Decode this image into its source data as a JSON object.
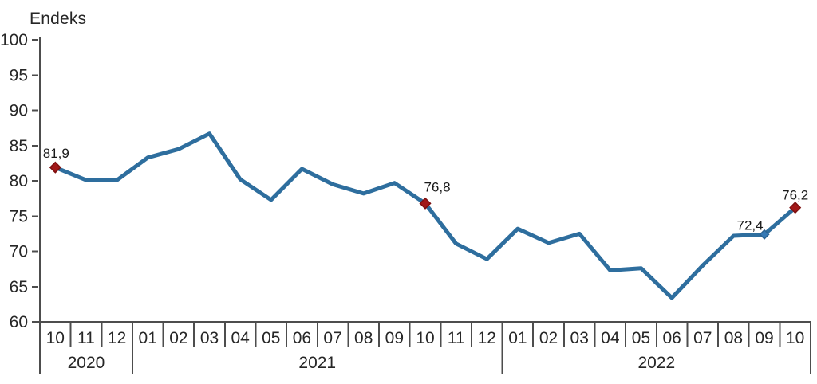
{
  "chart_data": {
    "type": "line",
    "title": "",
    "ylabel": "Endeks",
    "ylim": [
      60,
      100
    ],
    "yticks": [
      60,
      65,
      70,
      75,
      80,
      85,
      90,
      95,
      100
    ],
    "grid": false,
    "legend": "none",
    "x_months": [
      "10",
      "11",
      "12",
      "01",
      "02",
      "03",
      "04",
      "05",
      "06",
      "07",
      "08",
      "09",
      "10",
      "11",
      "12",
      "01",
      "02",
      "03",
      "04",
      "05",
      "06",
      "07",
      "08",
      "09",
      "10"
    ],
    "year_groups": [
      {
        "label": "2020",
        "months": 3
      },
      {
        "label": "2021",
        "months": 12
      },
      {
        "label": "2022",
        "months": 10
      }
    ],
    "series": [
      {
        "name": "Endeks",
        "values": [
          81.9,
          80.1,
          80.1,
          83.3,
          84.5,
          86.7,
          80.2,
          77.3,
          81.7,
          79.5,
          78.2,
          79.7,
          76.8,
          71.1,
          68.9,
          73.2,
          71.2,
          72.5,
          67.3,
          67.6,
          63.4,
          68.0,
          72.2,
          72.4,
          76.2
        ]
      }
    ],
    "annotations": [
      {
        "index": 0,
        "label": "81,9",
        "marker": "red"
      },
      {
        "index": 12,
        "label": "76,8",
        "marker": "red"
      },
      {
        "index": 23,
        "label": "72,4",
        "marker": "blue"
      },
      {
        "index": 24,
        "label": "76,2",
        "marker": "red"
      }
    ],
    "colors": {
      "line": "#2E6E9E",
      "marker_red": "#A21818",
      "marker_red_edge": "#7E1010",
      "marker_blue": "#3579B5",
      "marker_blue_edge": "#2A6292",
      "axis": "#4D4D4D",
      "text": "#262626",
      "annotation_text": "#1A1A1A"
    }
  }
}
